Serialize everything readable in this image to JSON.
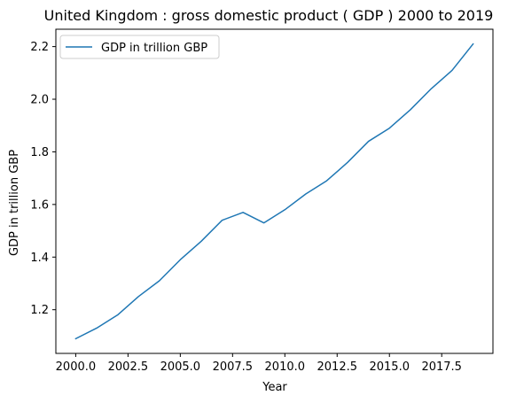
{
  "chart_data": {
    "type": "line",
    "title": "United Kingdom : gross domestic product ( GDP ) 2000 to 2019",
    "xlabel": "Year",
    "ylabel": "GDP in trillion GBP",
    "xlim": [
      1999.05,
      2019.95
    ],
    "ylim": [
      1.034,
      2.266
    ],
    "x_ticks": [
      2000.0,
      2002.5,
      2005.0,
      2007.5,
      2010.0,
      2012.5,
      2015.0,
      2017.5
    ],
    "x_tick_labels": [
      "2000.0",
      "2002.5",
      "2005.0",
      "2007.5",
      "2010.0",
      "2012.5",
      "2015.0",
      "2017.5"
    ],
    "y_ticks": [
      1.2,
      1.4,
      1.6,
      1.8,
      2.0,
      2.2
    ],
    "y_tick_labels": [
      "1.2",
      "1.4",
      "1.6",
      "1.8",
      "2.0",
      "2.2"
    ],
    "grid": false,
    "legend_position": "top-left",
    "x": [
      2000,
      2001,
      2002,
      2003,
      2004,
      2005,
      2006,
      2007,
      2008,
      2009,
      2010,
      2011,
      2012,
      2013,
      2014,
      2015,
      2016,
      2017,
      2018,
      2019
    ],
    "series": [
      {
        "name": "GDP in trillion GBP",
        "color": "#1f77b4",
        "values": [
          1.09,
          1.13,
          1.18,
          1.25,
          1.31,
          1.39,
          1.46,
          1.54,
          1.57,
          1.53,
          1.58,
          1.64,
          1.69,
          1.76,
          1.84,
          1.89,
          1.96,
          2.04,
          2.11,
          2.21
        ]
      }
    ]
  }
}
